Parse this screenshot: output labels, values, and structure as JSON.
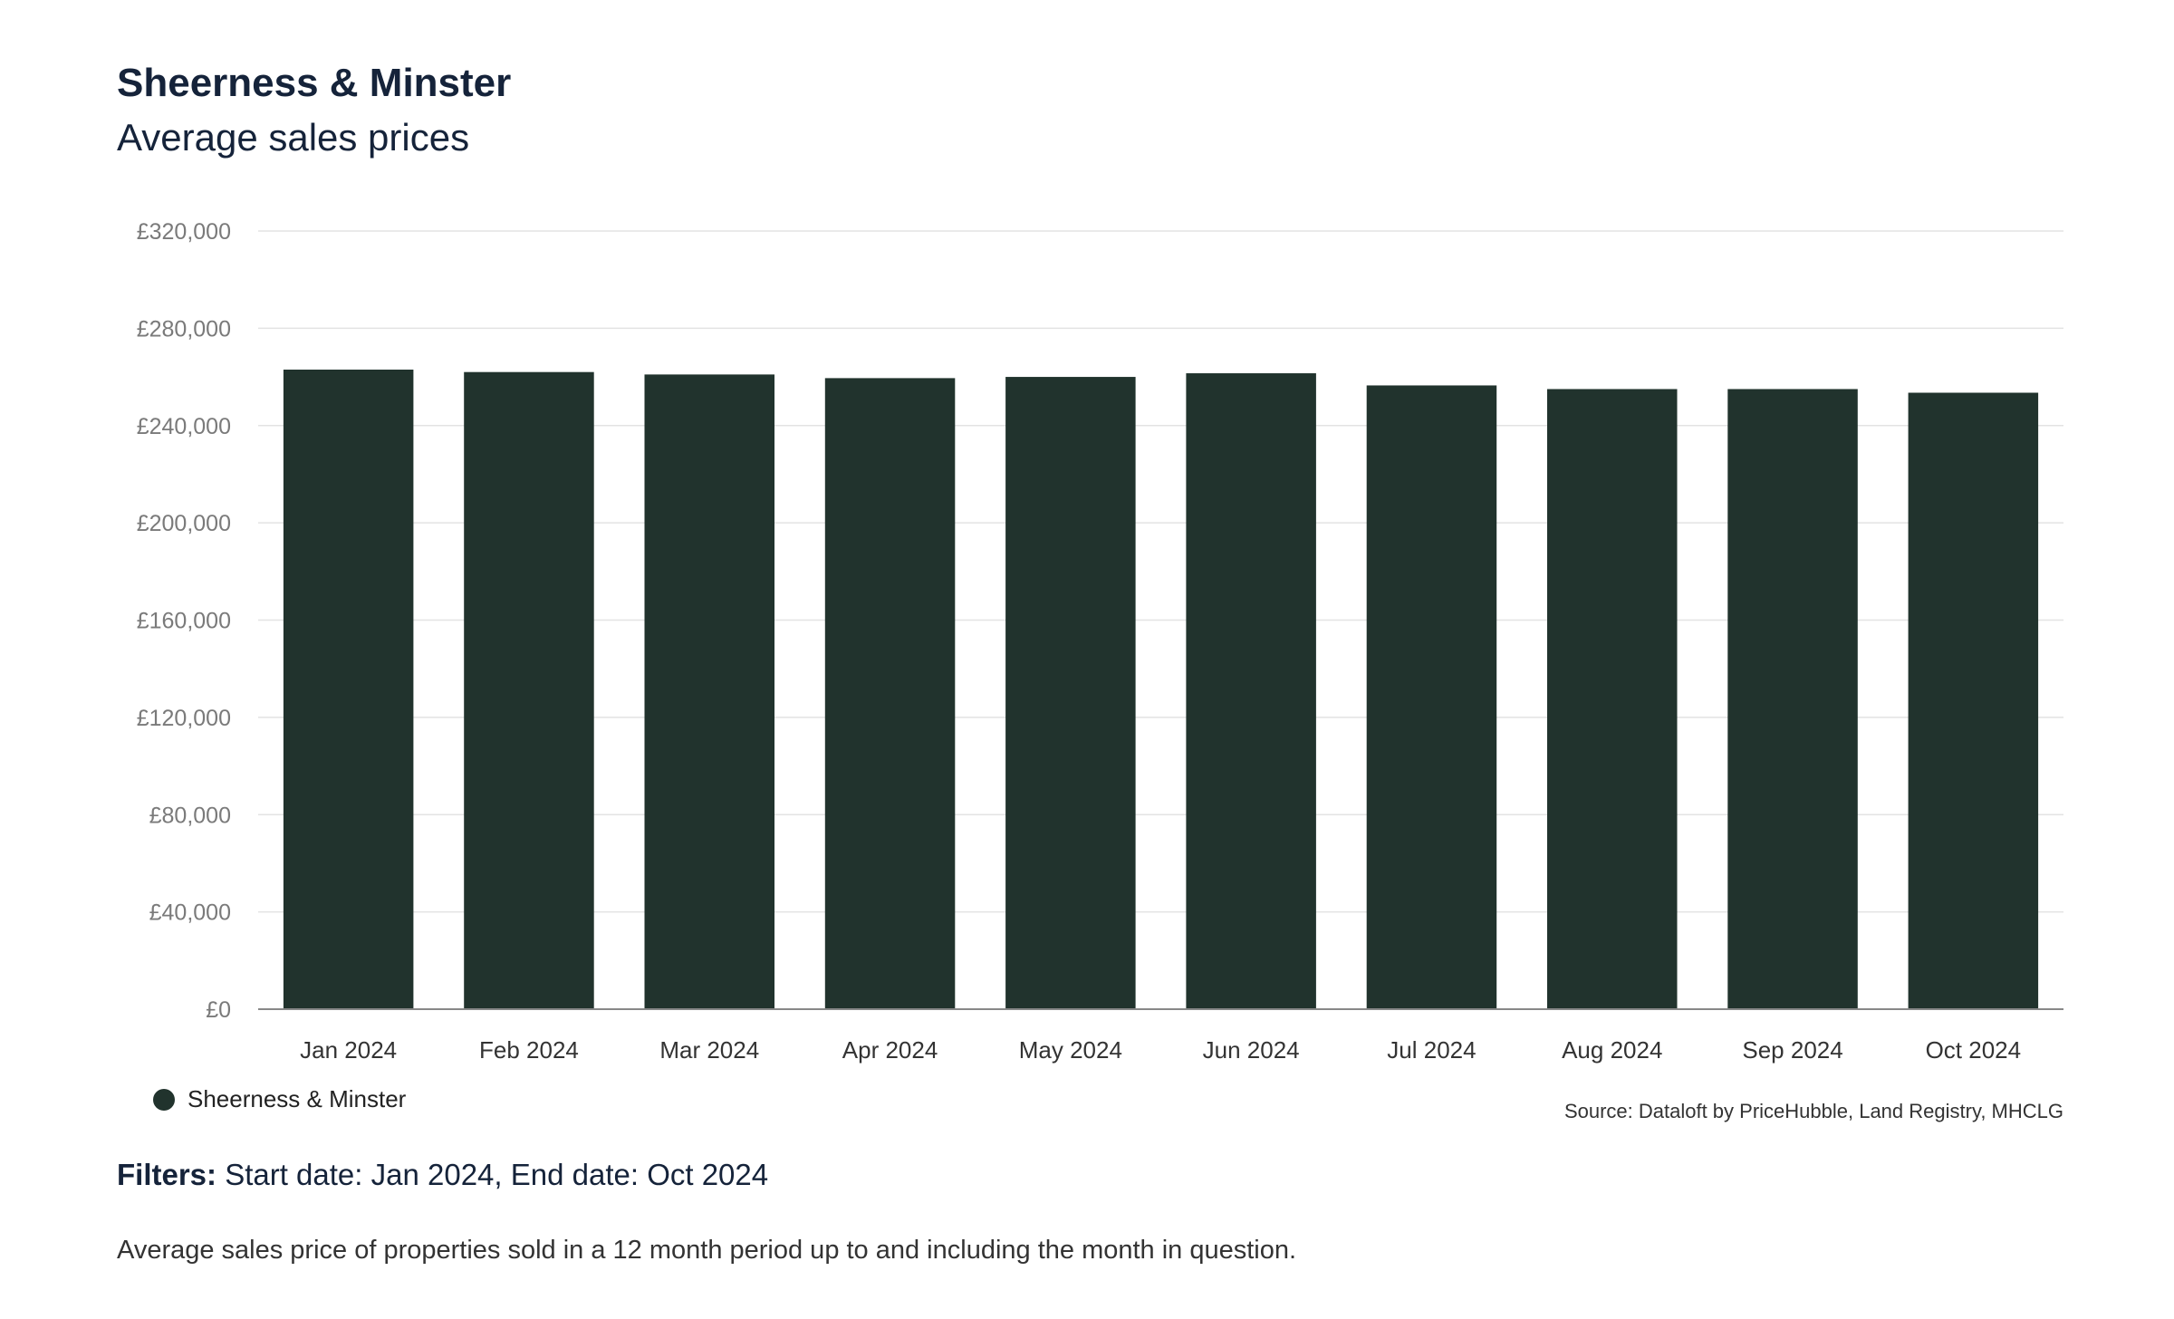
{
  "header": {
    "title": "Sheerness & Minster",
    "subtitle": "Average sales prices"
  },
  "legend": {
    "label": "Sheerness & Minster",
    "color": "#21332d"
  },
  "source": "Source: Dataloft by PriceHubble, Land Registry, MHCLG",
  "filters": {
    "key": "Filters:",
    "value": "Start date: Jan 2024, End date: Oct 2024"
  },
  "note": "Average sales price of properties sold in a 12 month period up to and including the month in question.",
  "chart_data": {
    "type": "bar",
    "categories": [
      "Jan 2024",
      "Feb 2024",
      "Mar 2024",
      "Apr 2024",
      "May 2024",
      "Jun 2024",
      "Jul 2024",
      "Aug 2024",
      "Sep 2024",
      "Oct 2024"
    ],
    "series": [
      {
        "name": "Sheerness & Minster",
        "values": [
          263000,
          262000,
          261000,
          259500,
          260000,
          261500,
          256500,
          255000,
          255000,
          253500
        ]
      }
    ],
    "ylim": [
      0,
      320000
    ],
    "yticks": [
      0,
      40000,
      80000,
      120000,
      160000,
      200000,
      240000,
      280000,
      320000
    ],
    "ytick_labels": [
      "£0",
      "£40,000",
      "£80,000",
      "£120,000",
      "£160,000",
      "£200,000",
      "£240,000",
      "£280,000",
      "£320,000"
    ],
    "grid": true,
    "legend_position": "bottom-left",
    "bar_color": "#21332d",
    "grid_color": "#e3e3e3",
    "axis_color": "#888888"
  }
}
